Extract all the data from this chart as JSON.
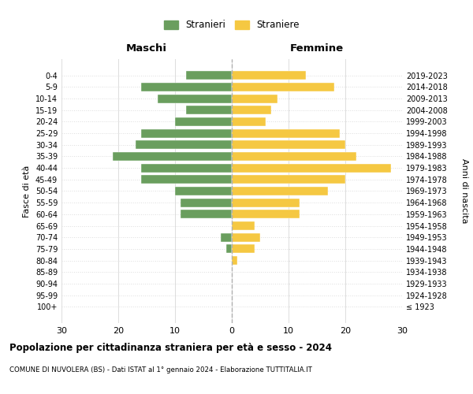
{
  "age_groups": [
    "100+",
    "95-99",
    "90-94",
    "85-89",
    "80-84",
    "75-79",
    "70-74",
    "65-69",
    "60-64",
    "55-59",
    "50-54",
    "45-49",
    "40-44",
    "35-39",
    "30-34",
    "25-29",
    "20-24",
    "15-19",
    "10-14",
    "5-9",
    "0-4"
  ],
  "birth_years": [
    "≤ 1923",
    "1924-1928",
    "1929-1933",
    "1934-1938",
    "1939-1943",
    "1944-1948",
    "1949-1953",
    "1954-1958",
    "1959-1963",
    "1964-1968",
    "1969-1973",
    "1974-1978",
    "1979-1983",
    "1984-1988",
    "1989-1993",
    "1994-1998",
    "1999-2003",
    "2004-2008",
    "2009-2013",
    "2014-2018",
    "2019-2023"
  ],
  "maschi": [
    0,
    0,
    0,
    0,
    0,
    1,
    2,
    0,
    9,
    9,
    10,
    16,
    16,
    21,
    17,
    16,
    10,
    8,
    13,
    16,
    8
  ],
  "femmine": [
    0,
    0,
    0,
    0,
    1,
    4,
    5,
    4,
    12,
    12,
    17,
    20,
    28,
    22,
    20,
    19,
    6,
    7,
    8,
    18,
    13
  ],
  "maschi_color": "#6a9e5e",
  "femmine_color": "#f5c842",
  "title": "Popolazione per cittadinanza straniera per età e sesso - 2024",
  "subtitle": "COMUNE DI NUVOLERA (BS) - Dati ISTAT al 1° gennaio 2024 - Elaborazione TUTTITALIA.IT",
  "ylabel_left": "Fasce di età",
  "ylabel_right": "Anni di nascita",
  "xlabel_left": "Maschi",
  "xlabel_top_right": "Femmine",
  "legend_maschi": "Stranieri",
  "legend_femmine": "Straniere",
  "xlim": 30,
  "background_color": "#ffffff",
  "grid_color": "#dddddd",
  "dashed_line_color": "#b0b0b0"
}
